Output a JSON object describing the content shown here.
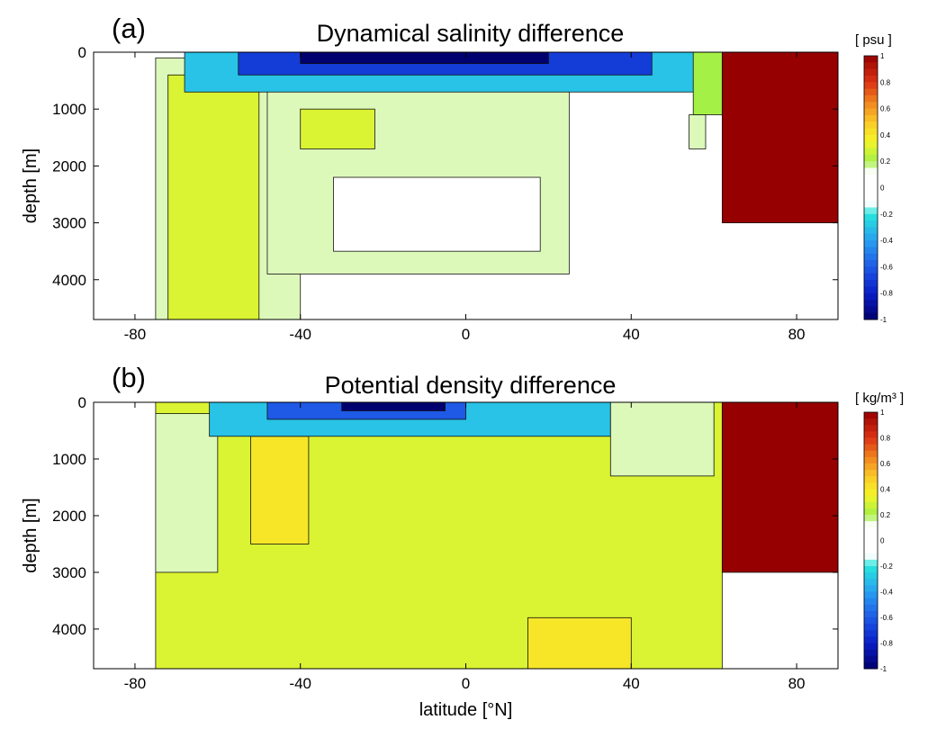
{
  "chart_data": [
    {
      "type": "heatmap",
      "panel_label": "(a)",
      "title": "Dynamical salinity difference",
      "xlabel": "",
      "ylabel": "depth [m]",
      "xlim": [
        -90,
        90
      ],
      "ylim": [
        4700,
        0
      ],
      "xticks": [
        "-80",
        "-40",
        "0",
        "40",
        "80"
      ],
      "yticks": [
        "0",
        "1000",
        "2000",
        "3000",
        "4000"
      ],
      "colorbar": {
        "unit": "[ psu ]",
        "range": [
          -1,
          1
        ],
        "ticks": [
          "1",
          "0.8",
          "0.6",
          "0.4",
          "0.2",
          "0",
          "-0.2",
          "-0.4",
          "-0.6",
          "-0.8",
          "-1"
        ]
      },
      "regions": [
        {
          "x": [
            -90,
            90
          ],
          "y": [
            0,
            4700
          ],
          "value": 0
        },
        {
          "x": [
            -75,
            -40
          ],
          "y": [
            100,
            4700
          ],
          "value": 0.15
        },
        {
          "x": [
            -72,
            -50
          ],
          "y": [
            400,
            4700
          ],
          "value": 0.3
        },
        {
          "x": [
            -48,
            25
          ],
          "y": [
            650,
            3900
          ],
          "value": 0.15
        },
        {
          "x": [
            -40,
            -22
          ],
          "y": [
            1000,
            1700
          ],
          "value": 0.3
        },
        {
          "x": [
            -32,
            18
          ],
          "y": [
            2200,
            3500
          ],
          "value": 0
        },
        {
          "x": [
            -68,
            60
          ],
          "y": [
            0,
            700
          ],
          "value": -0.3
        },
        {
          "x": [
            -55,
            45
          ],
          "y": [
            0,
            400
          ],
          "value": -0.7
        },
        {
          "x": [
            -40,
            20
          ],
          "y": [
            0,
            200
          ],
          "value": -1
        },
        {
          "x": [
            55,
            62
          ],
          "y": [
            0,
            1100
          ],
          "value": 0.2
        },
        {
          "x": [
            62,
            90
          ],
          "y": [
            0,
            3000
          ],
          "value": 1
        },
        {
          "x": [
            54,
            58
          ],
          "y": [
            1100,
            1700
          ],
          "value": 0.15
        }
      ]
    },
    {
      "type": "heatmap",
      "panel_label": "(b)",
      "title": "Potential density difference",
      "xlabel": "latitude [°N]",
      "ylabel": "depth [m]",
      "xlim": [
        -90,
        90
      ],
      "ylim": [
        4700,
        0
      ],
      "xticks": [
        "-80",
        "-40",
        "0",
        "40",
        "80"
      ],
      "yticks": [
        "0",
        "1000",
        "2000",
        "3000",
        "4000"
      ],
      "colorbar": {
        "unit": "[ kg/m³ ]",
        "range": [
          -1,
          1
        ],
        "ticks": [
          "1",
          "0.8",
          "0.6",
          "0.4",
          "0.2",
          "0",
          "-0.2",
          "-0.4",
          "-0.6",
          "-0.8",
          "-1"
        ]
      },
      "regions": [
        {
          "x": [
            -90,
            90
          ],
          "y": [
            0,
            4700
          ],
          "value": 0
        },
        {
          "x": [
            -75,
            62
          ],
          "y": [
            0,
            4700
          ],
          "value": 0.3
        },
        {
          "x": [
            -75,
            -60
          ],
          "y": [
            200,
            3000
          ],
          "value": 0.15
        },
        {
          "x": [
            -52,
            -38
          ],
          "y": [
            600,
            2500
          ],
          "value": 0.4
        },
        {
          "x": [
            15,
            40
          ],
          "y": [
            3800,
            4700
          ],
          "value": 0.4
        },
        {
          "x": [
            -62,
            35
          ],
          "y": [
            0,
            600
          ],
          "value": -0.3
        },
        {
          "x": [
            -48,
            0
          ],
          "y": [
            0,
            300
          ],
          "value": -0.6
        },
        {
          "x": [
            -30,
            -5
          ],
          "y": [
            0,
            150
          ],
          "value": -1
        },
        {
          "x": [
            35,
            60
          ],
          "y": [
            0,
            1300
          ],
          "value": 0.15
        },
        {
          "x": [
            62,
            90
          ],
          "y": [
            0,
            3000
          ],
          "value": 1
        }
      ]
    }
  ]
}
